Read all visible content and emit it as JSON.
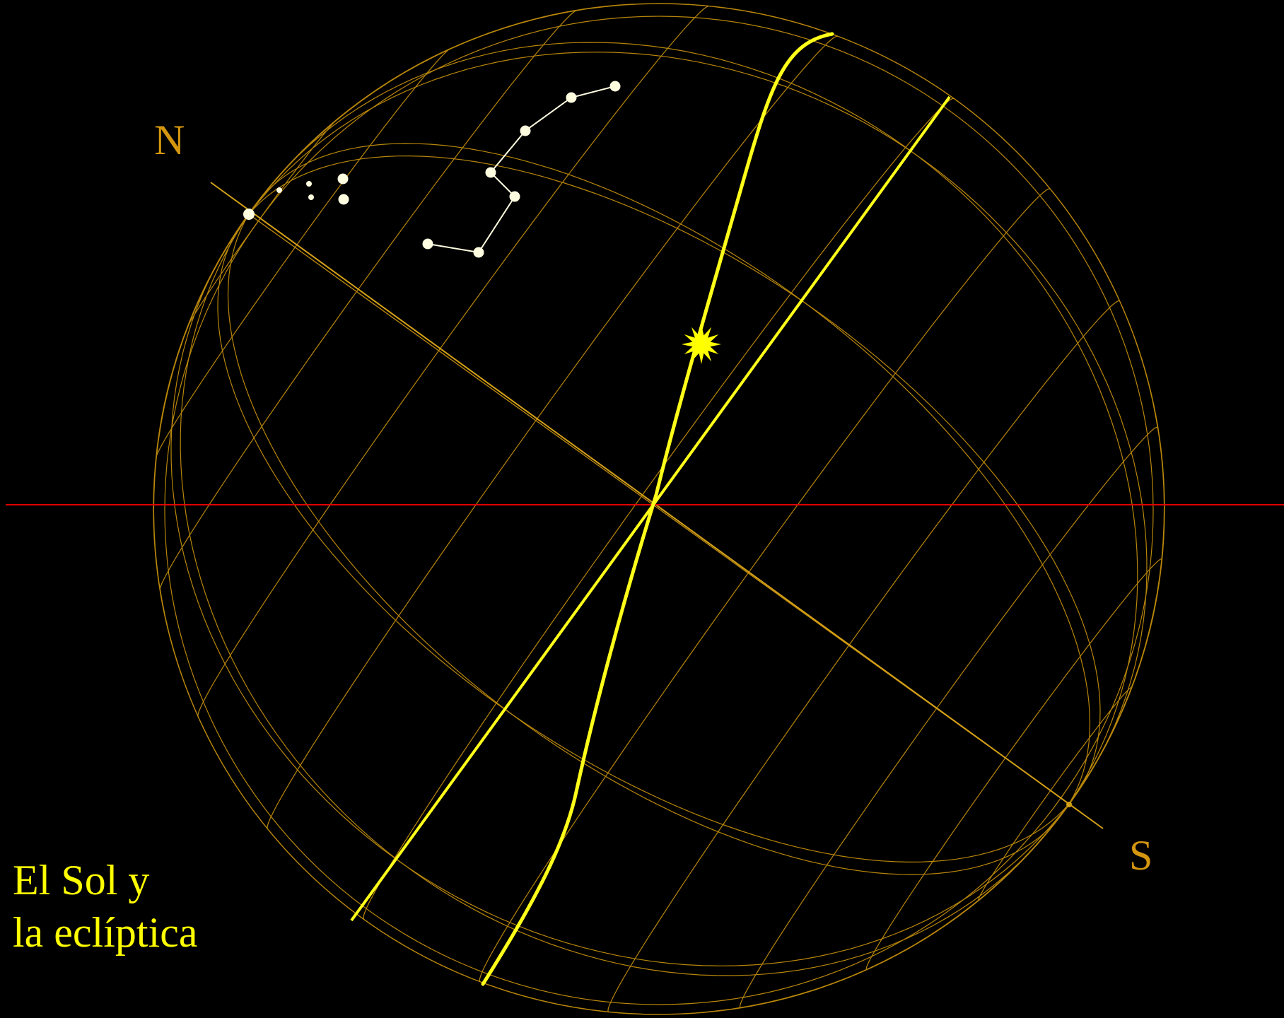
{
  "caption": {
    "line1": "El Sol y",
    "line2": "la eclíptica"
  },
  "poles": {
    "north": "N",
    "south": "S"
  },
  "colors": {
    "background": "#000000",
    "grid": "#b8860b",
    "axis": "#d4a017",
    "ecliptic": "#ffff1a",
    "horizon": "#e00000",
    "stars": "#fffde0",
    "sun": "#ffff00",
    "caption": "#ffff00",
    "pole_label": "#d4960f"
  },
  "objects": {
    "sun_icon": "sun-icon",
    "constellation": "big-dipper-stars"
  }
}
